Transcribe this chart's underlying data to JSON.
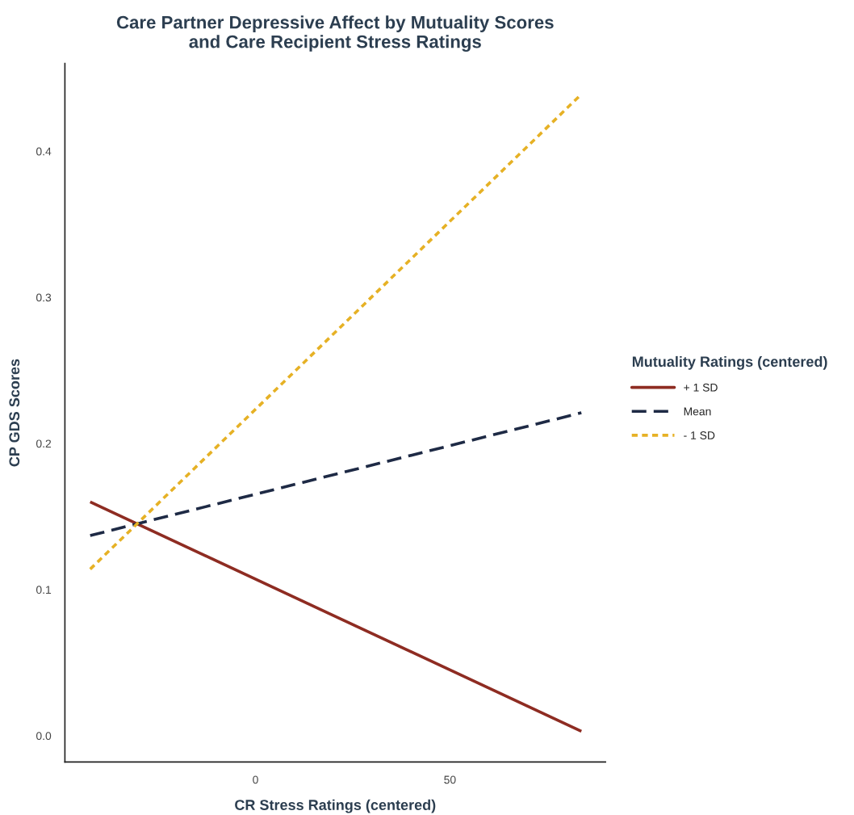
{
  "chart_data": {
    "type": "line",
    "title": "Care Partner Depressive Affect by Mutuality Scores\nand Care Recipient Stress Ratings",
    "xlabel": "CR Stress Ratings (centered)",
    "ylabel": "CP GDS Scores",
    "legend_title": "Mutuality Ratings (centered)",
    "x": [
      -42.5,
      83.8
    ],
    "series": [
      {
        "name": "+ 1 SD",
        "color": "#8e2c22",
        "values": [
          0.16,
          0.003
        ],
        "line_style": "solid"
      },
      {
        "name": "Mean",
        "color": "#1e2a45",
        "values": [
          0.137,
          0.221
        ],
        "line_style": "dashed"
      },
      {
        "name": "- 1 SD",
        "color": "#e6b125",
        "values": [
          0.114,
          0.439
        ],
        "line_style": "dotted"
      }
    ],
    "xlim": [
      -49,
      90
    ],
    "ylim": [
      -0.018,
      0.46
    ],
    "xticks": [
      0,
      50
    ],
    "yticks": [
      {
        "value": 0,
        "label": "0.0"
      },
      0.1,
      0.2,
      0.3,
      0.4
    ],
    "grid": false,
    "legend": "right"
  }
}
